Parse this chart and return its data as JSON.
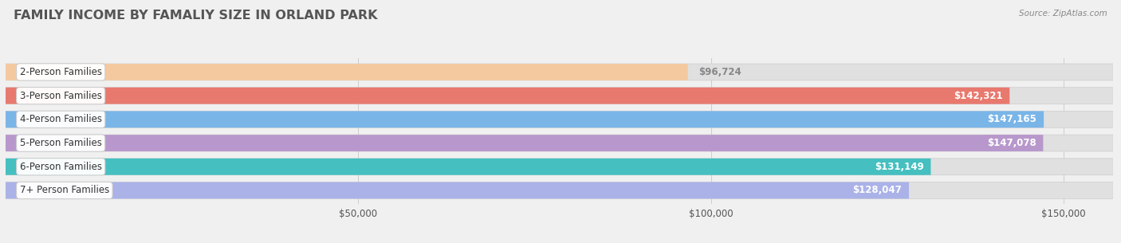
{
  "title": "FAMILY INCOME BY FAMALIY SIZE IN ORLAND PARK",
  "source": "Source: ZipAtlas.com",
  "categories": [
    "2-Person Families",
    "3-Person Families",
    "4-Person Families",
    "5-Person Families",
    "6-Person Families",
    "7+ Person Families"
  ],
  "values": [
    96724,
    142321,
    147165,
    147078,
    131149,
    128047
  ],
  "labels": [
    "$96,724",
    "$142,321",
    "$147,165",
    "$147,078",
    "$131,149",
    "$128,047"
  ],
  "bar_colors": [
    "#f5c9a0",
    "#e8796e",
    "#7ab5e8",
    "#b898cc",
    "#45bfbf",
    "#aab2e8"
  ],
  "background_color": "#f0f0f0",
  "bar_bg_color": "#e0e0e0",
  "xlim": [
    0,
    157000
  ],
  "xticks": [
    50000,
    100000,
    150000
  ],
  "xticklabels": [
    "$50,000",
    "$100,000",
    "$150,000"
  ],
  "title_fontsize": 11.5,
  "bar_height": 0.7,
  "label_inside_color": "white",
  "label_outside_color": "#aaaaaa"
}
